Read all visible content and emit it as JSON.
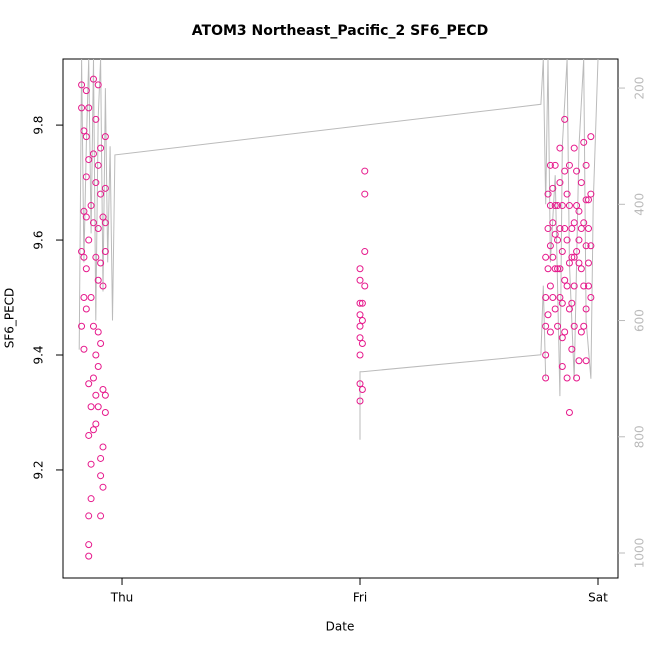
{
  "chart_data": {
    "type": "scatter",
    "title": "ATOM3 Northeast_Pacific_2 SF6_PECD",
    "xlabel": "Date",
    "ylabel": "SF6_PECD",
    "xlim": [
      -0.248,
      2.084
    ],
    "xticks": [
      {
        "value": 0,
        "label": "Thu"
      },
      {
        "value": 1,
        "label": "Fri"
      },
      {
        "value": 2,
        "label": "Sat"
      }
    ],
    "ylim": [
      9.012,
      9.915
    ],
    "yticks": [
      9.2,
      9.4,
      9.6,
      9.8
    ],
    "y2lim": [
      1043,
      150
    ],
    "y2ticks": [
      200,
      400,
      600,
      800,
      1000
    ],
    "y2color": "#bbbbbb",
    "series": [
      {
        "type": "scatter",
        "color": "#e6198c",
        "x": [
          -0.17,
          -0.17,
          -0.17,
          -0.17,
          -0.16,
          -0.16,
          -0.16,
          -0.16,
          -0.16,
          -0.15,
          -0.15,
          -0.15,
          -0.15,
          -0.15,
          -0.15,
          -0.14,
          -0.14,
          -0.14,
          -0.14,
          -0.14,
          -0.14,
          -0.14,
          -0.14,
          -0.13,
          -0.13,
          -0.13,
          -0.13,
          -0.13,
          -0.12,
          -0.12,
          -0.12,
          -0.12,
          -0.12,
          -0.12,
          -0.11,
          -0.11,
          -0.11,
          -0.11,
          -0.11,
          -0.11,
          -0.1,
          -0.1,
          -0.1,
          -0.1,
          -0.1,
          -0.1,
          -0.1,
          -0.09,
          -0.09,
          -0.09,
          -0.09,
          -0.09,
          -0.09,
          -0.09,
          -0.08,
          -0.08,
          -0.08,
          -0.08,
          -0.08,
          -0.07,
          -0.07,
          -0.07,
          -0.07,
          -0.07,
          -0.07,
          1.0,
          1.0,
          1.0,
          1.0,
          1.0,
          1.0,
          1.0,
          1.0,
          1.0,
          1.01,
          1.01,
          1.01,
          1.01,
          1.02,
          1.02,
          1.02,
          1.02,
          1.78,
          1.78,
          1.78,
          1.78,
          1.78,
          1.79,
          1.79,
          1.79,
          1.79,
          1.8,
          1.8,
          1.8,
          1.8,
          1.8,
          1.81,
          1.81,
          1.81,
          1.81,
          1.82,
          1.82,
          1.82,
          1.82,
          1.82,
          1.83,
          1.83,
          1.83,
          1.83,
          1.84,
          1.84,
          1.84,
          1.84,
          1.84,
          1.85,
          1.85,
          1.85,
          1.85,
          1.85,
          1.86,
          1.86,
          1.86,
          1.86,
          1.86,
          1.87,
          1.87,
          1.87,
          1.87,
          1.88,
          1.88,
          1.88,
          1.88,
          1.88,
          1.89,
          1.89,
          1.89,
          1.89,
          1.9,
          1.9,
          1.9,
          1.9,
          1.9,
          1.91,
          1.91,
          1.91,
          1.91,
          1.92,
          1.92,
          1.92,
          1.92,
          1.93,
          1.93,
          1.93,
          1.93,
          1.94,
          1.94,
          1.94,
          1.94,
          1.95,
          1.95,
          1.95,
          1.95,
          1.95,
          1.96,
          1.96,
          1.96,
          1.96,
          1.97,
          1.97,
          1.97,
          1.97
        ],
        "values": [
          9.87,
          9.83,
          9.58,
          9.45,
          9.79,
          9.65,
          9.57,
          9.5,
          9.41,
          9.86,
          9.78,
          9.71,
          9.64,
          9.55,
          9.48,
          9.83,
          9.74,
          9.6,
          9.35,
          9.26,
          9.12,
          9.05,
          9.07,
          9.66,
          9.5,
          9.31,
          9.21,
          9.15,
          9.88,
          9.75,
          9.63,
          9.45,
          9.36,
          9.27,
          9.81,
          9.7,
          9.57,
          9.4,
          9.33,
          9.28,
          9.87,
          9.73,
          9.62,
          9.53,
          9.44,
          9.38,
          9.31,
          9.76,
          9.68,
          9.56,
          9.42,
          9.22,
          9.19,
          9.12,
          9.64,
          9.52,
          9.34,
          9.24,
          9.17,
          9.78,
          9.69,
          9.63,
          9.58,
          9.33,
          9.3,
          9.55,
          9.53,
          9.49,
          9.47,
          9.45,
          9.43,
          9.4,
          9.35,
          9.32,
          9.49,
          9.46,
          9.42,
          9.34,
          9.72,
          9.68,
          9.58,
          9.52,
          9.57,
          9.5,
          9.45,
          9.4,
          9.36,
          9.68,
          9.62,
          9.55,
          9.47,
          9.73,
          9.66,
          9.59,
          9.52,
          9.44,
          9.69,
          9.63,
          9.57,
          9.5,
          9.73,
          9.66,
          9.61,
          9.55,
          9.48,
          9.66,
          9.6,
          9.55,
          9.45,
          9.76,
          9.7,
          9.62,
          9.55,
          9.5,
          9.66,
          9.58,
          9.49,
          9.43,
          9.38,
          9.81,
          9.72,
          9.62,
          9.53,
          9.44,
          9.68,
          9.6,
          9.52,
          9.36,
          9.73,
          9.66,
          9.56,
          9.48,
          9.3,
          9.62,
          9.57,
          9.49,
          9.41,
          9.76,
          9.63,
          9.57,
          9.52,
          9.45,
          9.72,
          9.66,
          9.58,
          9.36,
          9.65,
          9.6,
          9.56,
          9.39,
          9.7,
          9.62,
          9.55,
          9.44,
          9.77,
          9.63,
          9.52,
          9.45,
          9.73,
          9.67,
          9.59,
          9.48,
          9.39,
          9.67,
          9.62,
          9.56,
          9.52,
          9.78,
          9.68,
          9.59,
          9.5
        ]
      },
      {
        "type": "line",
        "axis": "y2",
        "color": "#bbbbbb",
        "x": [
          -0.18,
          -0.17,
          -0.16,
          -0.15,
          -0.14,
          -0.13,
          -0.12,
          -0.11,
          -0.1,
          -0.09,
          -0.08,
          -0.07,
          -0.06,
          -0.05,
          -0.04,
          -0.03,
          1.76,
          1.77,
          1.78,
          1.79,
          1.8,
          1.82,
          1.84,
          1.85,
          1.87,
          1.88,
          1.9,
          1.92,
          1.94,
          1.95,
          1.97,
          1.98,
          2.0,
          null,
          1.0,
          1.0,
          1.01,
          1.76,
          1.77,
          1.78
        ],
        "values": [
          650,
          150,
          500,
          300,
          150,
          450,
          150,
          600,
          250,
          150,
          550,
          200,
          500,
          300,
          600,
          315,
          228,
          150,
          400,
          150,
          500,
          350,
          730,
          300,
          150,
          500,
          700,
          300,
          150,
          600,
          700,
          400,
          150,
          null,
          805,
          688,
          688,
          659,
          540,
          700
        ]
      }
    ]
  }
}
